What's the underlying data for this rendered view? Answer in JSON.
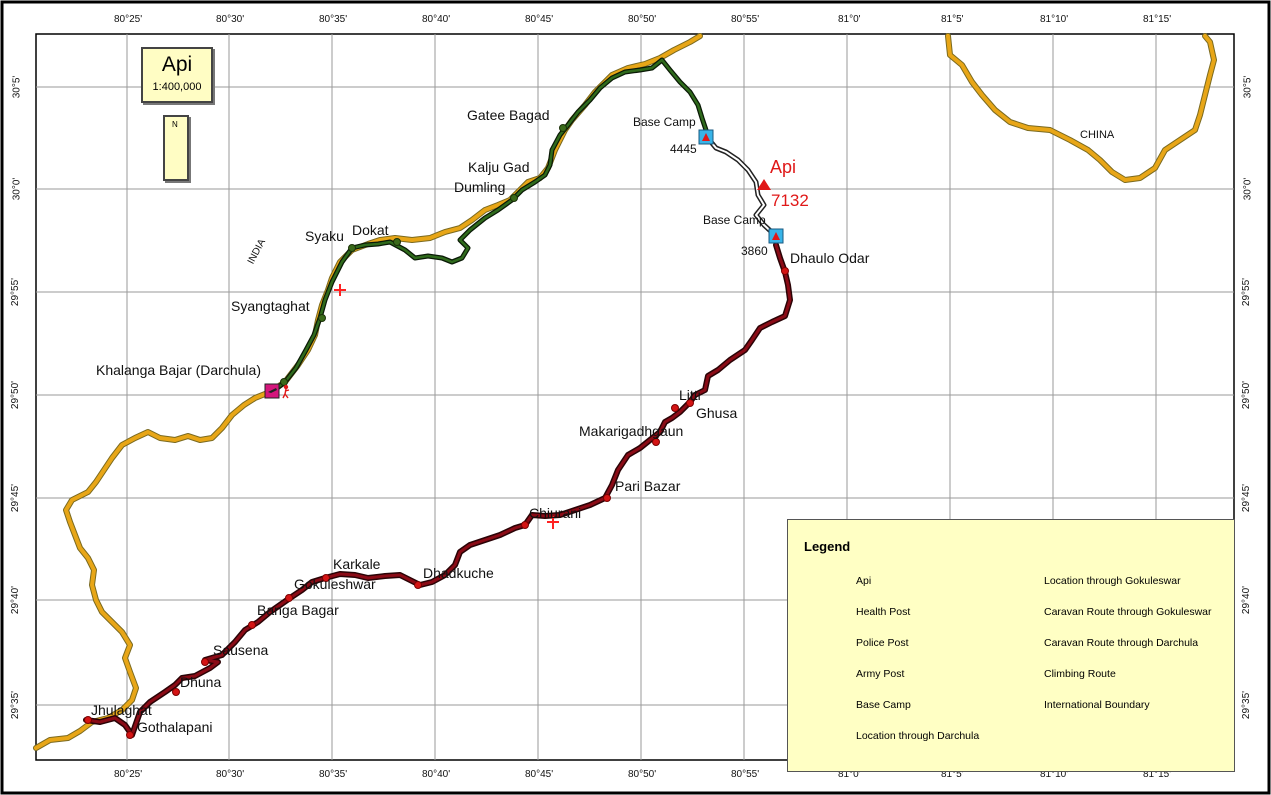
{
  "map": {
    "title": "Api",
    "scale": "1:400,000",
    "north_label": "N",
    "country_labels": {
      "india": "INDIA",
      "china": "CHINA"
    },
    "peak": {
      "name": "Api",
      "elevation": "7132"
    },
    "base_camps": [
      {
        "label": "Base Camp",
        "elevation": "4445"
      },
      {
        "label": "Base Camp",
        "elevation": "3860"
      }
    ],
    "places": {
      "gatee_bagad": "Gatee Bagad",
      "kalju_gad": "Kalju Gad",
      "dumling": "Dumling",
      "syaku": "Syaku",
      "dokat": "Dokat",
      "syangtaghat": "Syangtaghat",
      "khalanga": "Khalanga Bajar (Darchula)",
      "dhaulo_odar": "Dhaulo Odar",
      "litti": "Litti",
      "ghusa": "Ghusa",
      "makarigadhgaun": "Makarigadhgaun",
      "pari_bazar": "Pari Bazar",
      "chiurani": "Chiurani",
      "dhadkuche": "Dhadkuche",
      "karkale": "Karkale",
      "gokuleshwar": "Gokuleshwar",
      "banga_bagar": "Banga Bagar",
      "sausena": "Sausena",
      "dhuna": "Dhuna",
      "jhulaghat": "Jhulaghat",
      "gothalapani": "Gothalapani"
    },
    "longitude_ticks": [
      "80°25'",
      "80°30'",
      "80°35'",
      "80°40'",
      "80°45'",
      "80°50'",
      "80°55'",
      "81°0'",
      "81°5'",
      "81°10'",
      "81°15'"
    ],
    "latitude_ticks": [
      "30°5'",
      "30°0'",
      "29°55'",
      "29°50'",
      "29°45'",
      "29°40'",
      "29°35'"
    ]
  },
  "legend": {
    "title": "Legend",
    "items": {
      "api": "Api",
      "health_post": "Health Post",
      "police_post": "Police Post",
      "army_post": "Army Post",
      "base_camp": "Base Camp",
      "location_darchula": "Location through Darchula",
      "location_gokuleswar": "Location through Gokuleswar",
      "caravan_gokuleswar": "Caravan Route through Gokuleswar",
      "caravan_darchula": "Caravan Route through Darchula",
      "climbing_route": "Climbing Route",
      "international_boundary": "International Boundary"
    }
  },
  "colors": {
    "boundary": "#e8a617",
    "caravan_gokuleswar": "#7a0a14",
    "caravan_darchula": "#1f4a14",
    "climbing_route": "#222222",
    "health_post": "#ff2222",
    "army_post": "#d4167c",
    "base_camp": "#38b4e8",
    "location_darchula": "#3a6a1a",
    "location_gokuleswar": "#d41414",
    "legend_bg": "#ffffc4"
  }
}
